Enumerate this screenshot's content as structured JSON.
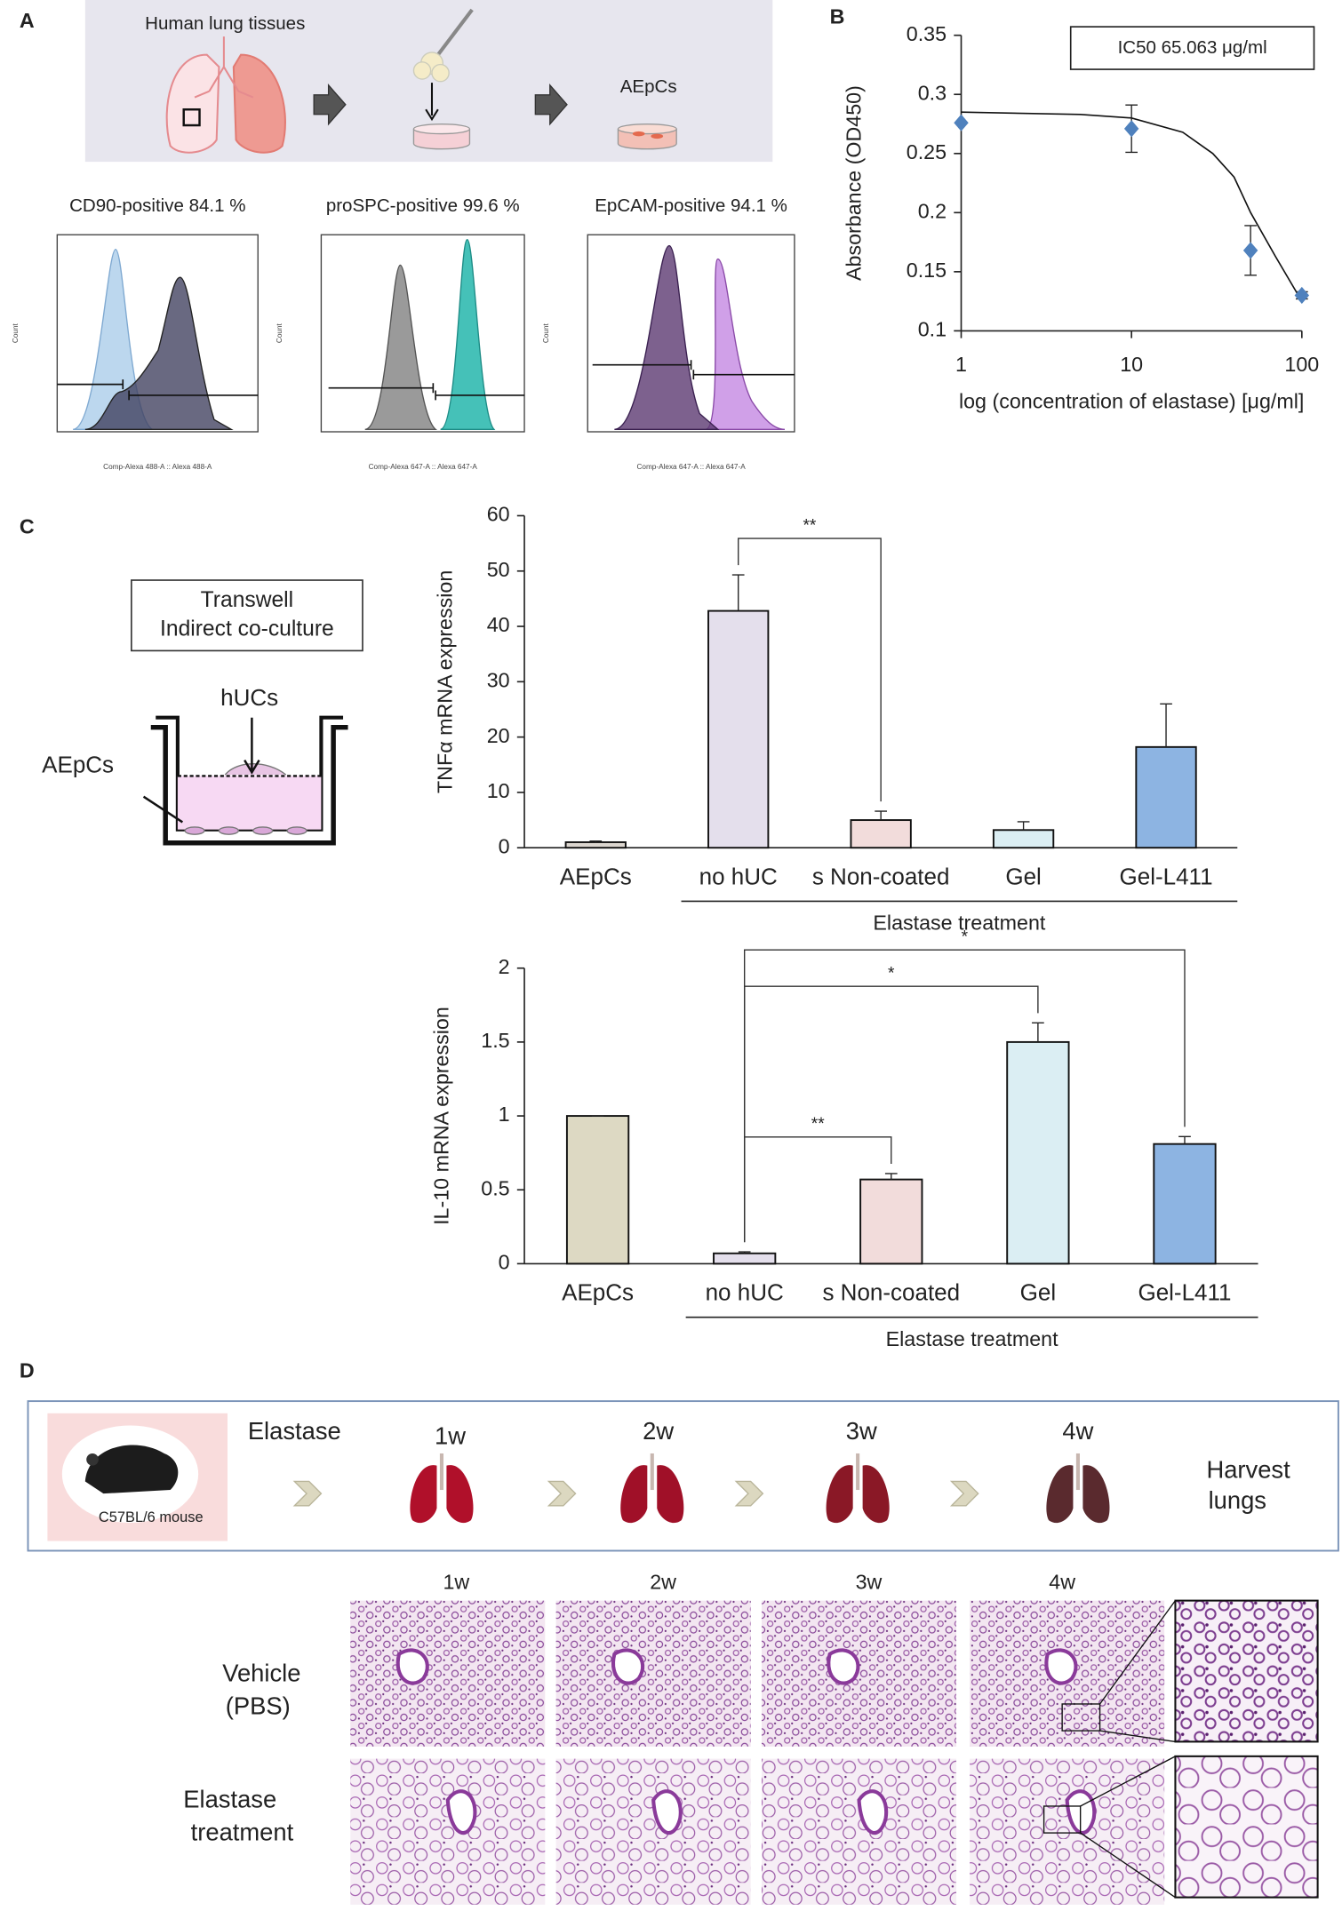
{
  "panel_labels": [
    "A",
    "B",
    "C",
    "D"
  ],
  "panel_a": {
    "tissue_label": "Human lung tissues",
    "cell_label": "AEpCs",
    "flow": [
      {
        "title": "CD90-positive 84.1 %",
        "x_label": "Comp-Alexa 488-A :: Alexa 488-A",
        "y_label": "Count"
      },
      {
        "title": "proSPC-positive 99.6 %",
        "x_label": "Comp-Alexa 647-A :: Alexa 647-A",
        "y_label": "Count"
      },
      {
        "title": "EpCAM-positive 94.1 %",
        "x_label": "Comp-Alexa 647-A :: Alexa 647-A",
        "y_label": "Count"
      }
    ]
  },
  "chart_data": [
    {
      "type": "scatter",
      "x_label": "log (concentration of elastase) [μg/ml]",
      "y_label": "Absorbance (OD450)",
      "annotation": "IC50  65.063 μg/ml",
      "x": [
        1,
        10,
        50,
        100
      ],
      "values": [
        0.276,
        0.271,
        0.168,
        0.13
      ],
      "errors": [
        0,
        0.02,
        0.021,
        0.003
      ],
      "color": "#4f81bd",
      "fit": {
        "x": [
          1,
          5,
          10,
          20,
          30,
          40,
          50,
          70,
          100
        ],
        "values": [
          0.285,
          0.283,
          0.28,
          0.268,
          0.25,
          0.23,
          0.2,
          0.163,
          0.125
        ]
      },
      "log_x": true,
      "xlim": [
        1,
        100
      ],
      "xticks": [
        1,
        10,
        100
      ],
      "ylim": [
        0.1,
        0.35
      ],
      "yticks": [
        0.1,
        0.15,
        0.2,
        0.25,
        0.3,
        0.35
      ]
    },
    {
      "type": "bar",
      "y_label": "TNFα mRNA expression",
      "categories": [
        "AEpCs",
        "no hUC",
        "s Non-coated",
        "Gel",
        "Gel-L411"
      ],
      "values": [
        1,
        42.8,
        5,
        3.2,
        18.2
      ],
      "errors": [
        0.2,
        6.5,
        1.6,
        1.5,
        7.8
      ],
      "colors": [
        "#dcd6cf",
        "#e4dfec",
        "#f2dcdb",
        "#dbeef3",
        "#8db4e2"
      ],
      "ylim": [
        0,
        60
      ],
      "yticks": [
        0,
        10,
        20,
        30,
        40,
        50,
        60
      ],
      "group": {
        "label": "Elastase treatment",
        "categories": [
          "no hUC",
          "s Non-coated",
          "Gel",
          "Gel-L411"
        ]
      },
      "significance": [
        {
          "between": [
            "no hUC",
            "s Non-coated"
          ],
          "label": "**"
        }
      ]
    },
    {
      "type": "bar",
      "y_label": "IL-10 mRNA expression",
      "categories": [
        "AEpCs",
        "no hUC",
        "s Non-coated",
        "Gel",
        "Gel-L411"
      ],
      "values": [
        1,
        0.07,
        0.57,
        1.5,
        0.81
      ],
      "errors": [
        0,
        0.01,
        0.04,
        0.13,
        0.05
      ],
      "colors": [
        "#ddd9c3",
        "#e4dfec",
        "#f2dcdb",
        "#dbeef3",
        "#8db4e2"
      ],
      "ylim": [
        0,
        2
      ],
      "yticks": [
        0,
        0.5,
        1,
        1.5,
        2
      ],
      "group": {
        "label": "Elastase treatment",
        "categories": [
          "no hUC",
          "s Non-coated",
          "Gel",
          "Gel-L411"
        ]
      },
      "significance": [
        {
          "between": [
            "no hUC",
            "s Non-coated"
          ],
          "label": "**"
        },
        {
          "between": [
            "no hUC",
            "Gel"
          ],
          "label": "*"
        },
        {
          "between": [
            "no hUC",
            "Gel-L411"
          ],
          "label": "*"
        }
      ]
    }
  ],
  "panel_c": {
    "box_lines": [
      "Transwell",
      "Indirect co-culture"
    ],
    "insert_label": "hUCs",
    "well_label": "AEpCs"
  },
  "panel_d": {
    "timeline": {
      "mouse_label": "C57BL/6 mouse",
      "start": "Elastase",
      "weeks": [
        "1w",
        "2w",
        "3w",
        "4w"
      ],
      "end": [
        "Harvest",
        "lungs"
      ]
    },
    "histology": {
      "columns": [
        "1w",
        "2w",
        "3w",
        "4w"
      ],
      "rows": [
        [
          "Vehicle",
          "(PBS)"
        ],
        [
          "Elastase",
          "treatment"
        ]
      ]
    }
  }
}
